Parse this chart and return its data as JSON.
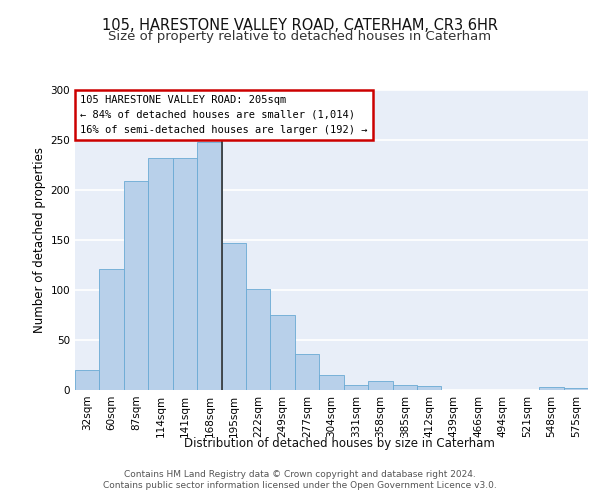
{
  "title1": "105, HARESTONE VALLEY ROAD, CATERHAM, CR3 6HR",
  "title2": "Size of property relative to detached houses in Caterham",
  "xlabel": "Distribution of detached houses by size in Caterham",
  "ylabel": "Number of detached properties",
  "categories": [
    "32sqm",
    "60sqm",
    "87sqm",
    "114sqm",
    "141sqm",
    "168sqm",
    "195sqm",
    "222sqm",
    "249sqm",
    "277sqm",
    "304sqm",
    "331sqm",
    "358sqm",
    "385sqm",
    "412sqm",
    "439sqm",
    "466sqm",
    "494sqm",
    "521sqm",
    "548sqm",
    "575sqm"
  ],
  "values": [
    20,
    121,
    209,
    232,
    232,
    248,
    147,
    101,
    75,
    36,
    15,
    5,
    9,
    5,
    4,
    0,
    0,
    0,
    0,
    3,
    2
  ],
  "bar_color": "#b8d0ea",
  "bar_edge_color": "#6aaad4",
  "vline_x": 5.5,
  "vline_color": "#333333",
  "ylim": [
    0,
    300
  ],
  "yticks": [
    0,
    50,
    100,
    150,
    200,
    250,
    300
  ],
  "annotation_line1": "105 HARESTONE VALLEY ROAD: 205sqm",
  "annotation_line2": "← 84% of detached houses are smaller (1,014)",
  "annotation_line3": "16% of semi-detached houses are larger (192) →",
  "annotation_facecolor": "#ffffff",
  "annotation_edgecolor": "#cc0000",
  "plot_bg_color": "#e8eef8",
  "grid_color": "#ffffff",
  "footer_line1": "Contains HM Land Registry data © Crown copyright and database right 2024.",
  "footer_line2": "Contains public sector information licensed under the Open Government Licence v3.0.",
  "title1_fontsize": 10.5,
  "title2_fontsize": 9.5,
  "xlabel_fontsize": 8.5,
  "ylabel_fontsize": 8.5,
  "tick_fontsize": 7.5,
  "annotation_fontsize": 7.5,
  "footer_fontsize": 6.5
}
